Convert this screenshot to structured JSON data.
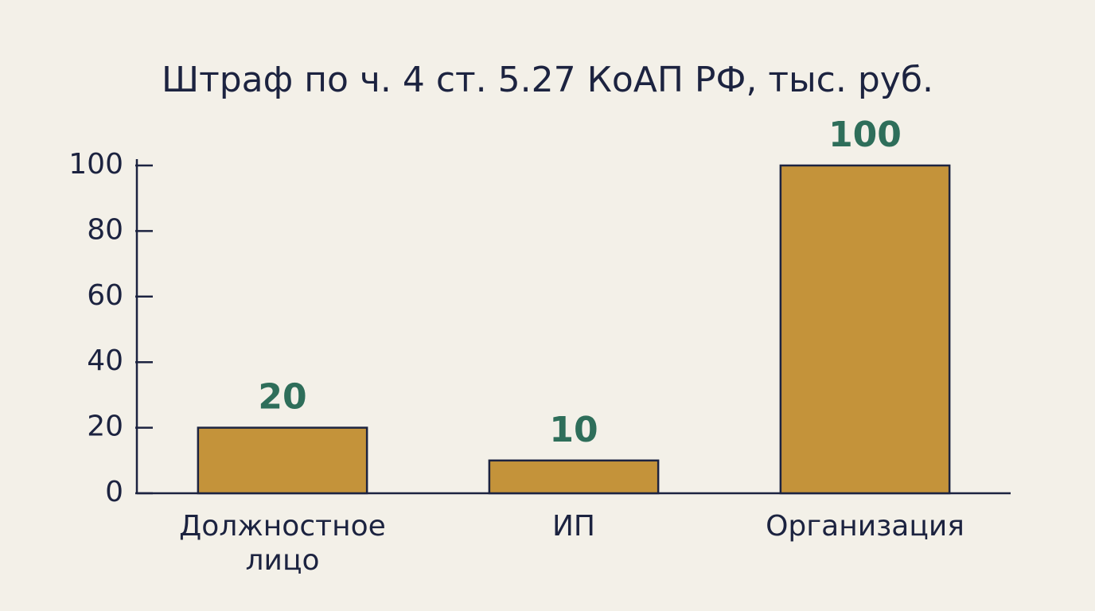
{
  "chart_data": {
    "type": "bar",
    "title": "Штраф по ч. 4 ст. 5.27 КоАП РФ, тыс. руб.",
    "categories": [
      "Должностное лицо",
      "ИП",
      "Организация"
    ],
    "values": [
      20,
      10,
      100
    ],
    "color": "#c4933a",
    "ylim": [
      0,
      100
    ],
    "yticks": [
      0,
      20,
      40,
      60,
      80,
      100
    ],
    "grid": false
  }
}
